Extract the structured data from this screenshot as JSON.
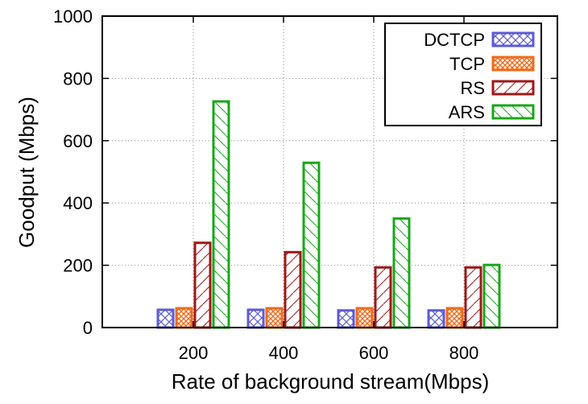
{
  "chart_data": {
    "type": "bar",
    "xlabel": "Rate of background stream(Mbps)",
    "ylabel": "Goodput (Mbps)",
    "ylim": [
      0,
      1000
    ],
    "yticks": [
      "0",
      "200",
      "400",
      "600",
      "800",
      "1000"
    ],
    "categories": [
      "200",
      "400",
      "600",
      "800"
    ],
    "grid": true,
    "legend_position": "top-right",
    "series": [
      {
        "name": "DCTCP",
        "color": "#5b5bd6",
        "pattern": "crosshatch",
        "values": [
          57,
          57,
          55,
          55
        ]
      },
      {
        "name": "TCP",
        "color": "#f06b1c",
        "pattern": "checker",
        "values": [
          62,
          62,
          62,
          62
        ]
      },
      {
        "name": "RS",
        "color": "#a01818",
        "pattern": "diagonal",
        "values": [
          272,
          242,
          193,
          193
        ]
      },
      {
        "name": "ARS",
        "color": "#18a818",
        "pattern": "backslash",
        "values": [
          726,
          529,
          350,
          201
        ]
      }
    ]
  }
}
